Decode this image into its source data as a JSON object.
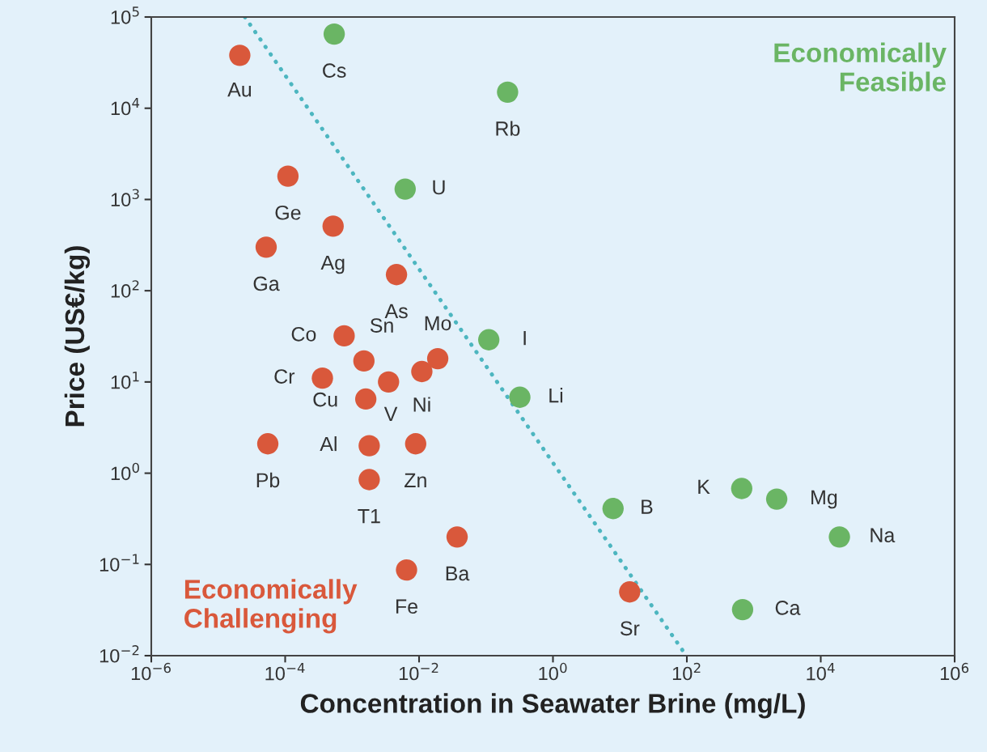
{
  "chart_data": {
    "type": "scatter",
    "xlabel": "Concentration in Seawater Brine (mg/L)",
    "ylabel": "Price (US€/kg)",
    "log": "xy",
    "grid": false,
    "marker": "circle",
    "xlim": [
      1e-06,
      1000000.0
    ],
    "ylim": [
      0.01,
      100000
    ],
    "xticks": [
      {
        "value": 1e-06,
        "label": "10$^{−6}$"
      },
      {
        "value": 0.0001,
        "label": "10$^{−4}$"
      },
      {
        "value": 0.01,
        "label": "10$^{−2}$"
      },
      {
        "value": 1,
        "label": "10$^{0}$"
      },
      {
        "value": 100,
        "label": "10$^{2}$"
      },
      {
        "value": 10000,
        "label": "10$^{4}$"
      },
      {
        "value": 1000000,
        "label": "10$^{6}$"
      }
    ],
    "yticks": [
      {
        "value": 0.01,
        "label": "10$^{−2}$"
      },
      {
        "value": 0.1,
        "label": "10$^{−1}$"
      },
      {
        "value": 1,
        "label": "10$^{0}$"
      },
      {
        "value": 10,
        "label": "10$^{1}$"
      },
      {
        "value": 100,
        "label": "10$^{2}$"
      },
      {
        "value": 1000,
        "label": "10$^{3}$"
      },
      {
        "value": 10000,
        "label": "10$^{4}$"
      },
      {
        "value": 100000,
        "label": "10$^{5}$"
      }
    ],
    "series": [
      {
        "color": "#d9583b",
        "x": [
          2.1e-05,
          0.00011,
          0.00052,
          5.2e-05,
          0.0046,
          0.00076,
          0.0015,
          0.019,
          0.011,
          0.00036,
          0.0035,
          0.0016,
          5.5e-05,
          0.0018,
          0.0089,
          0.0018,
          0.037,
          0.0065,
          14
        ],
        "values": [
          38000,
          1800,
          510,
          300,
          150,
          32,
          17,
          18,
          13,
          11,
          10,
          6.5,
          2.1,
          2.0,
          2.1,
          0.85,
          0.2,
          0.087,
          0.05
        ]
      },
      {
        "color": "#6ab564",
        "x": [
          0.00054,
          0.21,
          0.0062,
          0.11,
          0.32,
          660,
          2200,
          7.9,
          19000,
          680
        ],
        "values": [
          65000,
          15000,
          1300,
          29,
          6.8,
          0.68,
          0.52,
          0.41,
          0.2,
          0.032
        ]
      },
      {
        "type": "line",
        "color": "#4db6c0",
        "line_style": "dotted",
        "marker": "none",
        "x": [
          2.5e-05,
          98
        ],
        "values": [
          100000,
          0.01
        ]
      }
    ],
    "annotations": [
      "Economically Feasible",
      "Economically Challenging",
      {
        "text": "Au",
        "x": 2.1e-05,
        "y": 38000
      },
      {
        "text": "Ge",
        "x": 0.00011,
        "y": 1800
      },
      {
        "text": "Ag",
        "x": 0.00052,
        "y": 510
      },
      {
        "text": "Ga",
        "x": 5.2e-05,
        "y": 300
      },
      {
        "text": "As",
        "x": 0.0046,
        "y": 150
      },
      {
        "text": "Co",
        "x": 0.00076,
        "y": 32
      },
      {
        "text": "Sn",
        "x": 0.0015,
        "y": 17
      },
      {
        "text": "Mo",
        "x": 0.019,
        "y": 18
      },
      {
        "text": "Ni",
        "x": 0.011,
        "y": 13
      },
      {
        "text": "Cr",
        "x": 0.00036,
        "y": 11
      },
      {
        "text": "V",
        "x": 0.0035,
        "y": 10
      },
      {
        "text": "Cu",
        "x": 0.0016,
        "y": 6.5
      },
      {
        "text": "Pb",
        "x": 5.5e-05,
        "y": 2.1
      },
      {
        "text": "Al",
        "x": 0.0018,
        "y": 2.0
      },
      {
        "text": "Zn",
        "x": 0.0089,
        "y": 2.1
      },
      {
        "text": "T1",
        "x": 0.0018,
        "y": 0.85
      },
      {
        "text": "Ba",
        "x": 0.037,
        "y": 0.2
      },
      {
        "text": "Fe",
        "x": 0.0065,
        "y": 0.087
      },
      {
        "text": "Sr",
        "x": 14,
        "y": 0.05
      },
      {
        "text": "Cs",
        "x": 0.00054,
        "y": 65000
      },
      {
        "text": "Rb",
        "x": 0.21,
        "y": 15000
      },
      {
        "text": "U",
        "x": 0.0062,
        "y": 1300
      },
      {
        "text": "I",
        "x": 0.11,
        "y": 29
      },
      {
        "text": "Li",
        "x": 0.32,
        "y": 6.8
      },
      {
        "text": "K",
        "x": 660,
        "y": 0.68
      },
      {
        "text": "Mg",
        "x": 2200,
        "y": 0.52
      },
      {
        "text": "B",
        "x": 7.9,
        "y": 0.41
      },
      {
        "text": "Na",
        "x": 19000,
        "y": 0.2
      },
      {
        "text": "Ca",
        "x": 680,
        "y": 0.032
      }
    ]
  }
}
